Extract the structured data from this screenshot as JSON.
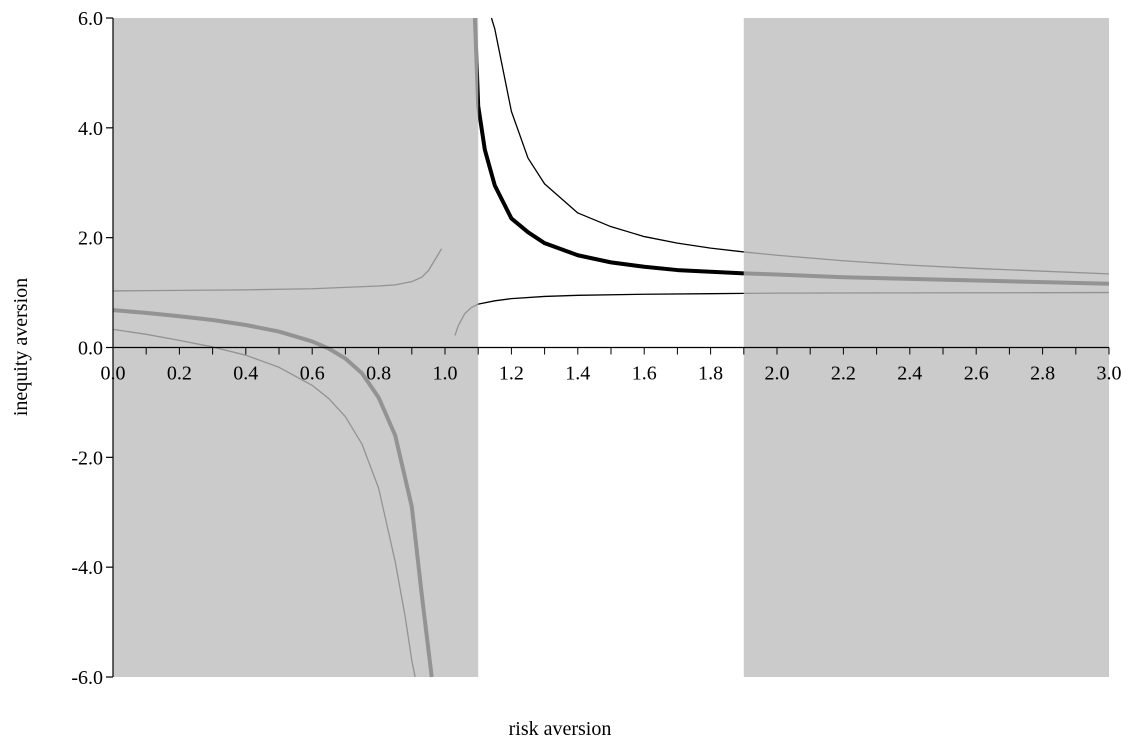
{
  "chart_data": {
    "type": "line",
    "xlabel": "risk aversion",
    "ylabel": "inequity aversion",
    "xlim": [
      0.0,
      3.0
    ],
    "ylim": [
      -6.0,
      6.0
    ],
    "x_ticks": [
      0.0,
      0.1,
      0.2,
      0.3,
      0.4,
      0.5,
      0.6,
      0.7,
      0.8,
      0.9,
      1.0,
      1.1,
      1.2,
      1.3,
      1.4,
      1.5,
      1.6,
      1.7,
      1.8,
      1.9,
      2.0,
      2.1,
      2.2,
      2.3,
      2.4,
      2.5,
      2.6,
      2.7,
      2.8,
      2.9,
      3.0
    ],
    "x_tick_labels": [
      "0.0",
      "0.2",
      "0.4",
      "0.6",
      "0.8",
      "1.0",
      "1.2",
      "1.4",
      "1.6",
      "1.8",
      "2.0",
      "2.2",
      "2.4",
      "2.6",
      "2.8",
      "3.0"
    ],
    "y_ticks": [
      -6.0,
      -4.0,
      -2.0,
      0.0,
      2.0,
      4.0,
      6.0
    ],
    "y_tick_labels": [
      "-6.0",
      "-4.0",
      "-2.0",
      "0.0",
      "2.0",
      "4.0",
      "6.0"
    ],
    "grid": false,
    "legend": "none",
    "shaded_regions": [
      {
        "x_from": 0.0,
        "x_to": 1.1,
        "color": "#cbcbcb"
      },
      {
        "x_from": 1.9,
        "x_to": 3.0,
        "color": "#cbcbcb"
      }
    ],
    "series": [
      {
        "style": "thick",
        "x": [
          0.0,
          0.1,
          0.2,
          0.3,
          0.4,
          0.5,
          0.6,
          0.65,
          0.7,
          0.75,
          0.8,
          0.85,
          0.9,
          0.93,
          0.95,
          0.96
        ],
        "y": [
          0.68,
          0.63,
          0.57,
          0.5,
          0.41,
          0.29,
          0.11,
          -0.02,
          -0.2,
          -0.47,
          -0.91,
          -1.6,
          -2.9,
          -4.5,
          -5.5,
          -6.0
        ]
      },
      {
        "style": "thin",
        "x": [
          0.0,
          0.1,
          0.2,
          0.3,
          0.4,
          0.5,
          0.6,
          0.65,
          0.7,
          0.75,
          0.8,
          0.85,
          0.88,
          0.9,
          0.91
        ],
        "y": [
          0.33,
          0.24,
          0.13,
          0.01,
          -0.14,
          -0.36,
          -0.69,
          -0.93,
          -1.26,
          -1.76,
          -2.56,
          -3.9,
          -4.9,
          -5.7,
          -6.0
        ]
      },
      {
        "style": "thin",
        "x": [
          0.0,
          0.2,
          0.4,
          0.6,
          0.8,
          0.85,
          0.9,
          0.93,
          0.95,
          0.97,
          0.99
        ],
        "y": [
          1.03,
          1.04,
          1.05,
          1.07,
          1.12,
          1.14,
          1.2,
          1.28,
          1.4,
          1.6,
          1.8
        ]
      },
      {
        "style": "thin",
        "x": [
          1.03,
          1.04,
          1.06,
          1.08,
          1.1,
          1.15,
          1.2,
          1.3,
          1.4,
          1.6,
          1.8,
          2.0,
          2.4,
          2.8,
          3.0
        ],
        "y": [
          0.22,
          0.4,
          0.62,
          0.73,
          0.79,
          0.85,
          0.89,
          0.93,
          0.95,
          0.97,
          0.98,
          0.99,
          0.995,
          0.998,
          1.0
        ]
      },
      {
        "style": "thick",
        "x": [
          1.09,
          1.1,
          1.12,
          1.15,
          1.2,
          1.25,
          1.3,
          1.4,
          1.5,
          1.6,
          1.7,
          1.8,
          1.9,
          2.0,
          2.2,
          2.4,
          2.6,
          2.8,
          3.0
        ],
        "y": [
          6.0,
          4.4,
          3.6,
          2.95,
          2.35,
          2.1,
          1.9,
          1.68,
          1.55,
          1.47,
          1.41,
          1.38,
          1.35,
          1.33,
          1.28,
          1.25,
          1.22,
          1.19,
          1.16
        ]
      },
      {
        "style": "thin",
        "x": [
          1.14,
          1.15,
          1.2,
          1.25,
          1.3,
          1.4,
          1.5,
          1.6,
          1.7,
          1.8,
          1.9,
          2.0,
          2.2,
          2.4,
          2.6,
          2.8,
          3.0
        ],
        "y": [
          6.0,
          5.8,
          4.3,
          3.45,
          2.98,
          2.45,
          2.2,
          2.02,
          1.9,
          1.81,
          1.74,
          1.68,
          1.58,
          1.5,
          1.44,
          1.39,
          1.34
        ]
      }
    ],
    "colors": {
      "shade": "#cbcbcb",
      "line_in_shade": "#939393",
      "line_outside": "#000000"
    }
  }
}
